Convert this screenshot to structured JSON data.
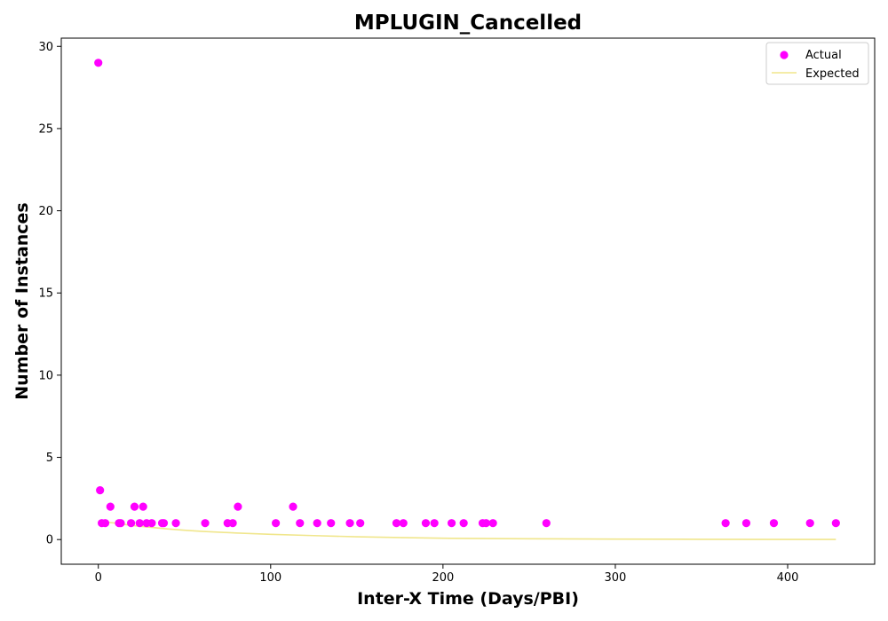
{
  "chart_data": {
    "type": "scatter",
    "title": "MPLUGIN_Cancelled",
    "xlabel": "Inter-X Time (Days/PBI)",
    "ylabel": "Number of Instances",
    "xlim": [
      -21.5,
      450.5
    ],
    "ylim": [
      -1.5,
      30.5
    ],
    "xticks": [
      0,
      100,
      200,
      300,
      400
    ],
    "yticks": [
      0,
      5,
      10,
      15,
      20,
      25,
      30
    ],
    "grid": false,
    "legend_position": "top-right",
    "series": [
      {
        "name": "Actual",
        "kind": "scatter",
        "color": "#ff00ff",
        "points": [
          [
            0,
            29
          ],
          [
            1,
            3
          ],
          [
            2,
            1
          ],
          [
            4,
            1
          ],
          [
            7,
            2
          ],
          [
            12,
            1
          ],
          [
            13,
            1
          ],
          [
            19,
            1
          ],
          [
            21,
            2
          ],
          [
            24,
            1
          ],
          [
            26,
            2
          ],
          [
            28,
            1
          ],
          [
            31,
            1
          ],
          [
            37,
            1
          ],
          [
            38,
            1
          ],
          [
            45,
            1
          ],
          [
            62,
            1
          ],
          [
            75,
            1
          ],
          [
            78,
            1
          ],
          [
            81,
            2
          ],
          [
            103,
            1
          ],
          [
            113,
            2
          ],
          [
            117,
            1
          ],
          [
            127,
            1
          ],
          [
            135,
            1
          ],
          [
            146,
            1
          ],
          [
            152,
            1
          ],
          [
            173,
            1
          ],
          [
            177,
            1
          ],
          [
            190,
            1
          ],
          [
            195,
            1
          ],
          [
            205,
            1
          ],
          [
            212,
            1
          ],
          [
            223,
            1
          ],
          [
            225,
            1
          ],
          [
            229,
            1
          ],
          [
            260,
            1
          ],
          [
            364,
            1
          ],
          [
            376,
            1
          ],
          [
            392,
            1
          ],
          [
            413,
            1
          ],
          [
            428,
            1
          ]
        ]
      },
      {
        "name": "Expected",
        "kind": "line",
        "color": "#f0e68c",
        "points": [
          [
            0,
            1.1
          ],
          [
            10,
            1.0
          ],
          [
            20,
            0.85
          ],
          [
            30,
            0.75
          ],
          [
            40,
            0.65
          ],
          [
            50,
            0.57
          ],
          [
            60,
            0.5
          ],
          [
            80,
            0.4
          ],
          [
            100,
            0.32
          ],
          [
            125,
            0.24
          ],
          [
            150,
            0.17
          ],
          [
            175,
            0.12
          ],
          [
            200,
            0.08
          ],
          [
            250,
            0.05
          ],
          [
            300,
            0.03
          ],
          [
            350,
            0.015
          ],
          [
            400,
            0.008
          ],
          [
            428,
            0.005
          ]
        ]
      }
    ]
  }
}
